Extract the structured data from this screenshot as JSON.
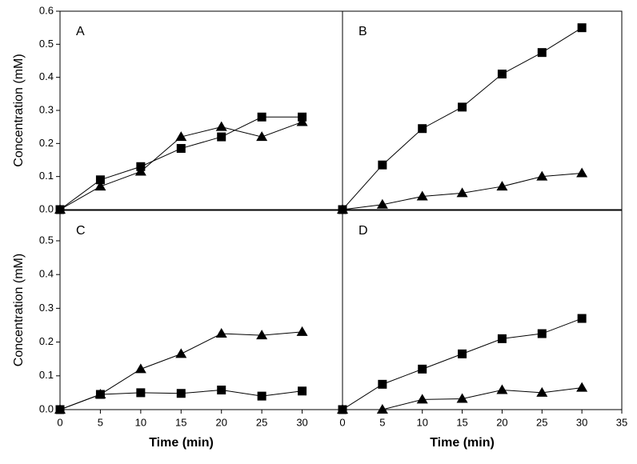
{
  "chart_data": [
    {
      "type": "line",
      "label": "A",
      "ylabel": "Concentration (mM)",
      "x": [
        0,
        5,
        10,
        15,
        20,
        25,
        30
      ],
      "xlim": [
        0,
        35
      ],
      "ylim": [
        0,
        0.6
      ],
      "yticks": [
        0.0,
        0.1,
        0.2,
        0.3,
        0.4,
        0.5,
        0.6
      ],
      "series": [
        {
          "marker": "square",
          "color": "#000000",
          "values": [
            0,
            0.09,
            0.13,
            0.185,
            0.22,
            0.28,
            0.28
          ]
        },
        {
          "marker": "triangle",
          "color": "#000000",
          "values": [
            0,
            0.07,
            0.115,
            0.22,
            0.25,
            0.22,
            0.265
          ]
        }
      ]
    },
    {
      "type": "line",
      "label": "B",
      "x": [
        0,
        5,
        10,
        15,
        20,
        25,
        30
      ],
      "xlim": [
        0,
        35
      ],
      "ylim": [
        0,
        0.6
      ],
      "series": [
        {
          "marker": "square",
          "color": "#000000",
          "values": [
            0,
            0.135,
            0.245,
            0.31,
            0.41,
            0.475,
            0.55
          ]
        },
        {
          "marker": "triangle",
          "color": "#000000",
          "values": [
            0,
            0.015,
            0.04,
            0.05,
            0.07,
            0.1,
            0.11
          ]
        }
      ]
    },
    {
      "type": "line",
      "label": "C",
      "ylabel": "Concentration (mM)",
      "xlabel": "Time (min)",
      "x": [
        0,
        5,
        10,
        15,
        20,
        25,
        30
      ],
      "xlim": [
        0,
        35
      ],
      "ylim": [
        0,
        0.59
      ],
      "yticks": [
        0.0,
        0.1,
        0.2,
        0.3,
        0.4,
        0.5
      ],
      "xticks": [
        0,
        5,
        10,
        15,
        20,
        25,
        30
      ],
      "series": [
        {
          "marker": "square",
          "color": "#000000",
          "values": [
            0,
            0.045,
            0.05,
            0.048,
            0.058,
            0.04,
            0.055
          ]
        },
        {
          "marker": "triangle",
          "color": "#000000",
          "values": [
            0,
            0.045,
            0.12,
            0.165,
            0.225,
            0.22,
            0.23
          ]
        }
      ]
    },
    {
      "type": "line",
      "label": "D",
      "xlabel": "Time (min)",
      "x": [
        0,
        5,
        10,
        15,
        20,
        25,
        30
      ],
      "xlim": [
        0,
        35
      ],
      "ylim": [
        0,
        0.59
      ],
      "xticks": [
        0,
        5,
        10,
        15,
        20,
        25,
        30,
        35
      ],
      "series": [
        {
          "marker": "square",
          "color": "#000000",
          "values": [
            0,
            0.075,
            0.12,
            0.165,
            0.21,
            0.225,
            0.27
          ]
        },
        {
          "marker": "triangle",
          "color": "#000000",
          "values": [
            0,
            0,
            0.03,
            0.032,
            0.058,
            0.05,
            0.065
          ]
        }
      ]
    }
  ]
}
